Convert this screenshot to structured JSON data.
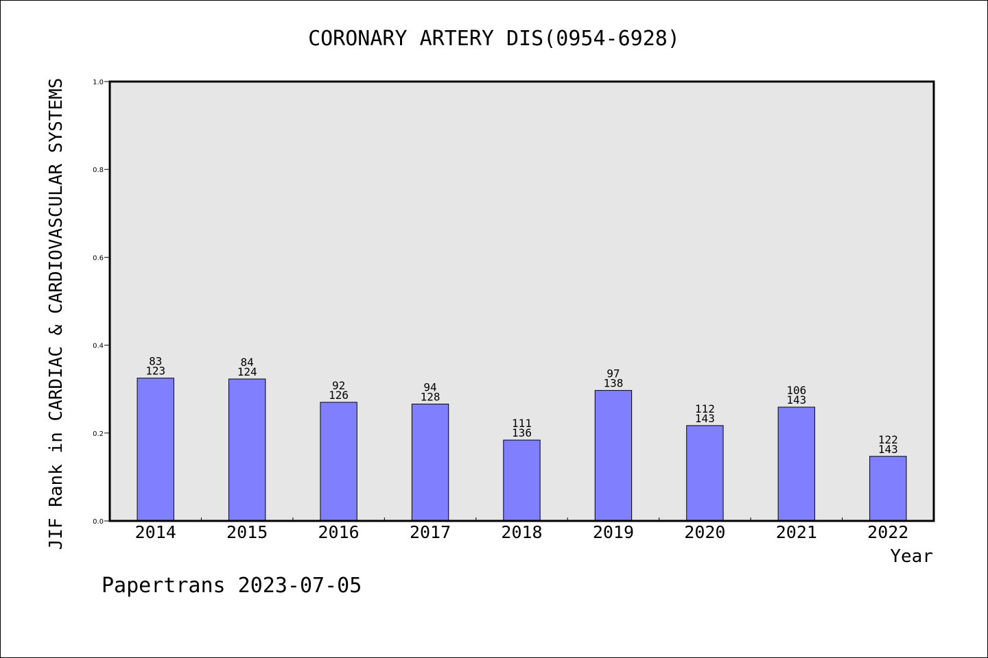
{
  "chart_data": {
    "type": "bar",
    "title": "CORONARY ARTERY DIS(0954-6928)",
    "xlabel": "Year",
    "ylabel": "JIF Rank in CARDIAC & CARDIOVASCULAR SYSTEMS",
    "ylim": [
      0.0,
      1.0
    ],
    "yticks": [
      "0.0",
      "0.2",
      "0.4",
      "0.6",
      "0.8",
      "1.0"
    ],
    "grid": false,
    "categories": [
      "2014",
      "2015",
      "2016",
      "2017",
      "2018",
      "2019",
      "2020",
      "2021",
      "2022"
    ],
    "series": [
      {
        "values": [
          0.325,
          0.323,
          0.27,
          0.266,
          0.184,
          0.297,
          0.217,
          0.259,
          0.147
        ],
        "ranks": [
          "83",
          "84",
          "92",
          "94",
          "111",
          "97",
          "112",
          "106",
          "122"
        ],
        "totals": [
          "123",
          "124",
          "126",
          "128",
          "136",
          "138",
          "143",
          "143",
          "143"
        ]
      }
    ],
    "bar_color": "#8080ff",
    "plot_background": "#e6e6e6"
  },
  "footer": "Papertrans 2023-07-05"
}
